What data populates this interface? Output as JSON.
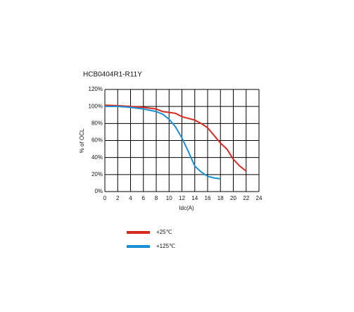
{
  "chart_data": {
    "type": "line",
    "title": "HCB0404R1-R11Y",
    "x_label": "Idc(A)",
    "y_label": "% of OCL",
    "xlim": [
      0,
      24
    ],
    "xticks": [
      0,
      2,
      4,
      6,
      8,
      10,
      12,
      14,
      16,
      18,
      20,
      22,
      24
    ],
    "ylim": [
      0,
      120
    ],
    "yticks": [
      {
        "value": 0,
        "label": "0%"
      },
      {
        "value": 20,
        "label": "20%"
      },
      {
        "value": 40,
        "label": "40%"
      },
      {
        "value": 60,
        "label": "60%"
      },
      {
        "value": 80,
        "label": "80%"
      },
      {
        "value": 100,
        "label": "100%"
      },
      {
        "value": 120,
        "label": "120%"
      }
    ],
    "grid": true,
    "series": [
      {
        "name": "+25℃",
        "color": "#d42a20",
        "x": [
          0,
          2,
          4,
          6,
          8,
          9,
          10,
          11,
          12,
          13,
          14,
          15,
          16,
          17,
          18,
          19,
          20,
          21,
          22
        ],
        "values": [
          101.5,
          101,
          100,
          99,
          97,
          94,
          93,
          92,
          88,
          86,
          84,
          80,
          75,
          66,
          57,
          50,
          38,
          30,
          24
        ]
      },
      {
        "name": "+125℃",
        "color": "#1a8fd6",
        "x": [
          0,
          2,
          4,
          6,
          8,
          9,
          10,
          11,
          12,
          13,
          14,
          15,
          16,
          17,
          18
        ],
        "values": [
          100,
          100,
          99,
          97,
          94,
          91,
          85,
          76,
          63,
          47,
          30,
          23,
          18,
          16,
          15
        ]
      }
    ]
  }
}
